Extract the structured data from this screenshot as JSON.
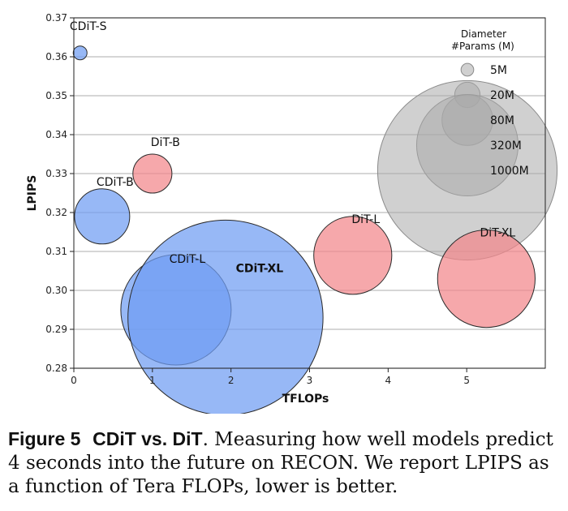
{
  "chart_data": {
    "type": "scatter",
    "xlabel": "TFLOPs",
    "ylabel": "LPIPS",
    "xlim": [
      0,
      6
    ],
    "ylim": [
      0.28,
      0.37
    ],
    "x_ticks": [
      "0",
      "1",
      "2",
      "3",
      "4",
      "5"
    ],
    "y_ticks": [
      "0.28",
      "0.29",
      "0.30",
      "0.31",
      "0.32",
      "0.33",
      "0.34",
      "0.35",
      "0.36",
      "0.37"
    ],
    "grid": "horizontal",
    "points": [
      {
        "label": "CDiT-S",
        "x": 0.08,
        "y": 0.361,
        "params_m": 5,
        "family": "CDiT"
      },
      {
        "label": "CDiT-B",
        "x": 0.36,
        "y": 0.319,
        "params_m": 80,
        "family": "CDiT"
      },
      {
        "label": "CDiT-L",
        "x": 1.3,
        "y": 0.295,
        "params_m": 320,
        "family": "CDiT"
      },
      {
        "label": "CDiT-XL",
        "x": 1.93,
        "y": 0.293,
        "params_m": 1000,
        "family": "CDiT"
      },
      {
        "label": "DiT-B",
        "x": 1.0,
        "y": 0.33,
        "params_m": 40,
        "family": "DiT"
      },
      {
        "label": "DiT-L",
        "x": 3.55,
        "y": 0.309,
        "params_m": 160,
        "family": "DiT"
      },
      {
        "label": "DiT-XL",
        "x": 5.25,
        "y": 0.303,
        "params_m": 250,
        "family": "DiT"
      }
    ],
    "colors": {
      "CDiT": "#6f9cf2",
      "DiT": "#f3868a",
      "legend": "#a9a9a9",
      "edge": "#2a2a2a"
    },
    "legend": {
      "title_line1": "Diameter",
      "title_line2": "#Params (M)",
      "position": "top-right",
      "entries": [
        {
          "label": "5M",
          "params_m": 5
        },
        {
          "label": "20M",
          "params_m": 20
        },
        {
          "label": "80M",
          "params_m": 80
        },
        {
          "label": "320M",
          "params_m": 320
        },
        {
          "label": "1000M",
          "params_m": 1000
        }
      ]
    }
  },
  "caption": {
    "figure_number": "Figure 5",
    "figure_title": "CDiT vs. DiT",
    "text": ". Measuring how well models predict 4 seconds into the future on RECON. We report LPIPS as a function of Tera FLOPs, lower is better."
  }
}
